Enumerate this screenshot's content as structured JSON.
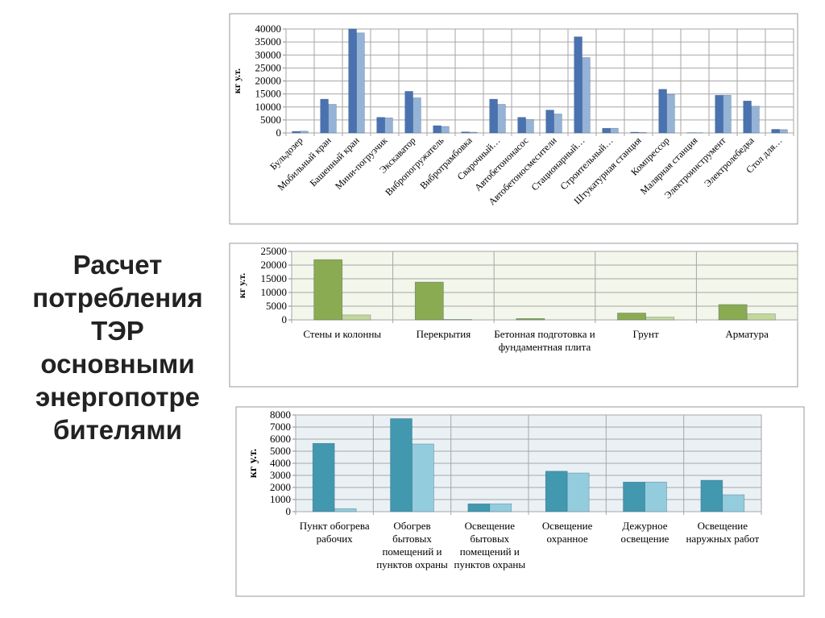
{
  "title": [
    "Расчет",
    "потребления",
    "ТЭР",
    "основными",
    "энергопотре",
    "бителями"
  ],
  "chart_data": [
    {
      "type": "bar",
      "ylabel": "кг у.т.",
      "categories": [
        "Бульдозер",
        "Мобильный кран",
        "Башенный кран",
        "Мини-погрузчик",
        "Экскаватор",
        "Вибропогружатель",
        "Вибротрамбовка",
        "Сварочный…",
        "Автобетононасос",
        "Автобетоносмесители",
        "Стационарный…",
        "Строительный…",
        "Штукатурная станция",
        "Компрессор",
        "Малярная станция",
        "Электроинструмент",
        "Электролебедка",
        "Стол для…"
      ],
      "series": [
        {
          "color": "#4a72b0",
          "values": [
            600,
            13000,
            40000,
            6000,
            16000,
            2800,
            400,
            13000,
            6000,
            8800,
            37000,
            1800,
            300,
            16800,
            100,
            14500,
            12300,
            1400
          ]
        },
        {
          "color": "#95b3d7",
          "values": [
            700,
            11000,
            38500,
            5800,
            13500,
            2500,
            300,
            11000,
            5200,
            7300,
            29000,
            1800,
            200,
            14800,
            100,
            14500,
            10300,
            1300
          ]
        }
      ],
      "ylim": [
        0,
        40000
      ],
      "yticks": [
        0,
        5000,
        10000,
        15000,
        20000,
        25000,
        30000,
        35000,
        40000
      ],
      "grid": true
    },
    {
      "type": "bar",
      "ylabel": "кг у.т.",
      "categories": [
        "Стены и колонны",
        "Перекрытия",
        "Бетонная подготовка и фундаментная плита",
        "Грунт",
        "Арматура"
      ],
      "series": [
        {
          "color": "#8aab52",
          "values": [
            22000,
            13800,
            500,
            2500,
            5600
          ]
        },
        {
          "color": "#c4d79b",
          "values": [
            1800,
            200,
            0,
            1000,
            2200
          ]
        }
      ],
      "ylim": [
        0,
        25000
      ],
      "yticks": [
        0,
        5000,
        10000,
        15000,
        20000,
        25000
      ],
      "grid": true
    },
    {
      "type": "bar",
      "ylabel": "кг у.т.",
      "categories": [
        "Пункт обогрева рабочих",
        "Обогрев бытовых помещений и пунктов охраны",
        "Освещение бытовых помещений и пунктов охраны",
        "Освещение охранное",
        "Дежурное освещение",
        "Освещение наружных работ"
      ],
      "series": [
        {
          "color": "#4198af",
          "values": [
            5650,
            7700,
            650,
            3350,
            2450,
            2600
          ]
        },
        {
          "color": "#93cddd",
          "values": [
            250,
            5600,
            650,
            3200,
            2450,
            1400
          ]
        }
      ],
      "ylim": [
        0,
        8000
      ],
      "yticks": [
        0,
        1000,
        2000,
        3000,
        4000,
        5000,
        6000,
        7000,
        8000
      ],
      "grid": true
    }
  ]
}
